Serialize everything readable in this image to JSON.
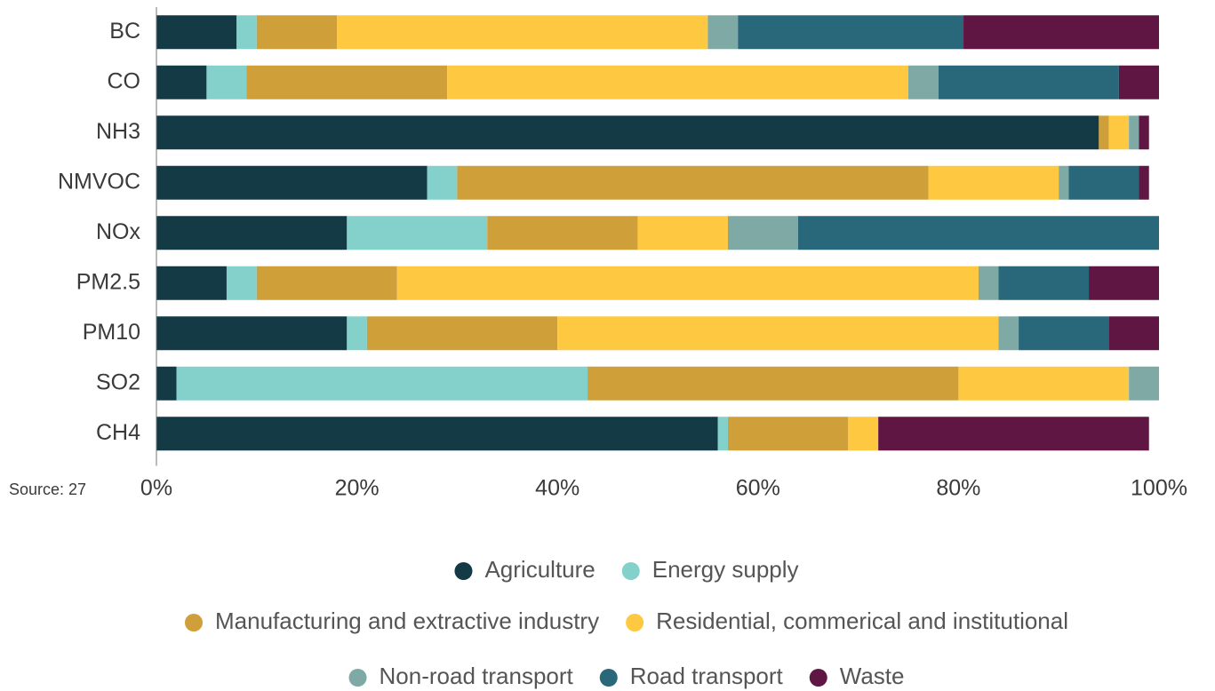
{
  "chart_data": {
    "type": "stacked_bar_horizontal",
    "source": "Source: 27",
    "categories": [
      "BC",
      "CO",
      "NH3",
      "NMVOC",
      "NOx",
      "PM2.5",
      "PM10",
      "SO2",
      "CH4"
    ],
    "series": [
      {
        "name": "Agriculture",
        "color": "#133a45",
        "values": [
          8,
          5,
          94,
          27,
          19,
          7,
          19,
          2,
          56
        ]
      },
      {
        "name": "Energy supply",
        "color": "#84d1cb",
        "values": [
          2,
          4,
          0,
          3,
          14,
          3,
          2,
          41,
          1
        ]
      },
      {
        "name": "Manufacturing and extractive industry",
        "color": "#cf9f3a",
        "values": [
          8,
          20,
          1,
          47,
          15,
          14,
          19,
          37,
          12
        ]
      },
      {
        "name": "Residential, commerical and institutional",
        "color": "#fec841",
        "values": [
          37,
          46,
          2,
          13,
          9,
          58,
          44,
          17,
          3
        ]
      },
      {
        "name": "Non-road transport",
        "color": "#7ea9a5",
        "values": [
          3,
          3,
          1,
          1,
          7,
          2,
          2,
          3,
          0
        ]
      },
      {
        "name": "Road transport",
        "color": "#29677b",
        "values": [
          22.5,
          18,
          0,
          7,
          36,
          9,
          9,
          0,
          0
        ]
      },
      {
        "name": "Waste",
        "color": "#5f1642",
        "values": [
          19.5,
          4,
          1,
          1,
          0,
          7,
          5,
          0,
          27
        ]
      }
    ],
    "xlim": [
      0,
      100
    ],
    "xticks": [
      {
        "value": 0,
        "label": "0%"
      },
      {
        "value": 20,
        "label": "20%"
      },
      {
        "value": 40,
        "label": "40%"
      },
      {
        "value": 60,
        "label": "60%"
      },
      {
        "value": 80,
        "label": "80%"
      },
      {
        "value": 100,
        "label": "100%"
      }
    ]
  }
}
